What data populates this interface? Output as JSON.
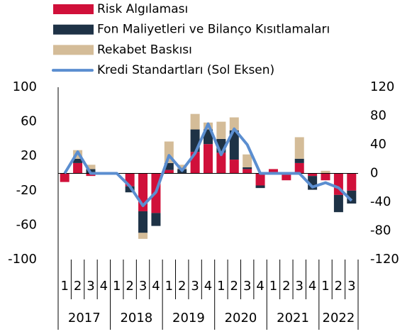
{
  "chart_data": {
    "type": "bar",
    "categories": [
      "1",
      "2",
      "3",
      "4",
      "1",
      "2",
      "3",
      "4",
      "1",
      "2",
      "3",
      "4",
      "1",
      "2",
      "3",
      "4",
      "1",
      "2",
      "3",
      "4",
      "1",
      "2",
      "3"
    ],
    "years": [
      "2017",
      "2018",
      "2019",
      "2020",
      "2021",
      "2022"
    ],
    "series": [
      {
        "name": "Risk Algılaması",
        "color": "#d0103a",
        "values": [
          -10,
          12,
          -3,
          0,
          0,
          -15,
          -44,
          -46,
          4,
          0,
          25,
          34,
          24,
          16,
          5,
          -14,
          5,
          -8,
          12,
          -3,
          -8,
          -25,
          -20
        ]
      },
      {
        "name": "Fon Maliyetleri ve Bilanço Kısıtlamaları",
        "color": "#1e3246",
        "values": [
          0,
          5,
          5,
          0,
          0,
          -7,
          -25,
          -15,
          8,
          5,
          26,
          17,
          16,
          34,
          2,
          -3,
          0,
          0,
          5,
          -16,
          0,
          -20,
          -15
        ]
      },
      {
        "name": "Rekabet Baskısı",
        "color": "#d4bc98",
        "values": [
          0,
          10,
          5,
          0,
          0,
          0,
          -7,
          0,
          25,
          5,
          18,
          8,
          20,
          15,
          15,
          0,
          0,
          0,
          25,
          0,
          3,
          0,
          0
        ]
      },
      {
        "name": "Kredi Standartları (Sol Eksen)",
        "color": "#5b8ed0",
        "type": "line",
        "axis": "y2",
        "values": [
          0,
          30,
          0,
          0,
          0,
          -18,
          -45,
          -26,
          25,
          4,
          28,
          69,
          26,
          62,
          40,
          0,
          0,
          0,
          0,
          -19,
          -13,
          -20,
          -38
        ]
      }
    ],
    "ylim": [
      -100,
      100
    ],
    "yticks": [
      100,
      60,
      20,
      -20,
      -60,
      -100
    ],
    "y2lim": [
      -120,
      120
    ],
    "y2ticks": [
      120,
      80,
      40,
      0,
      -40,
      -80,
      -120
    ]
  }
}
